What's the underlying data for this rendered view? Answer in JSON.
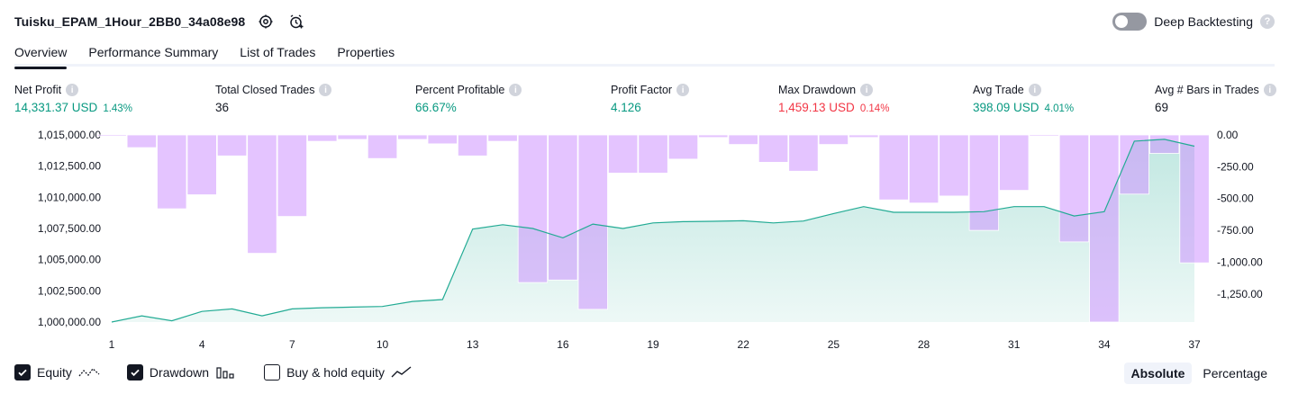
{
  "header": {
    "title": "Tuisku_EPAM_1Hour_2BB0_34a08e98",
    "deep_backtesting_label": "Deep Backtesting"
  },
  "tabs": [
    {
      "label": "Overview",
      "active": true
    },
    {
      "label": "Performance Summary",
      "active": false
    },
    {
      "label": "List of Trades",
      "active": false
    },
    {
      "label": "Properties",
      "active": false
    }
  ],
  "metrics": {
    "net_profit": {
      "label": "Net Profit",
      "value": "14,331.37 USD",
      "pct": "1.43%"
    },
    "total_closed_trades": {
      "label": "Total Closed Trades",
      "value": "36"
    },
    "percent_profitable": {
      "label": "Percent Profitable",
      "value": "66.67%"
    },
    "profit_factor": {
      "label": "Profit Factor",
      "value": "4.126"
    },
    "max_drawdown": {
      "label": "Max Drawdown",
      "value": "1,459.13 USD",
      "pct": "0.14%"
    },
    "avg_trade": {
      "label": "Avg Trade",
      "value": "398.09 USD",
      "pct": "4.01%"
    },
    "avg_bars": {
      "label": "Avg # Bars in Trades",
      "value": "69"
    }
  },
  "chart_data": {
    "type": "area",
    "x": [
      1,
      2,
      3,
      4,
      5,
      6,
      7,
      8,
      9,
      10,
      11,
      12,
      13,
      14,
      15,
      16,
      17,
      18,
      19,
      20,
      21,
      22,
      23,
      24,
      25,
      26,
      27,
      28,
      29,
      30,
      31,
      32,
      33,
      34,
      35,
      36,
      37
    ],
    "x_ticks": [
      "1",
      "4",
      "7",
      "10",
      "13",
      "16",
      "19",
      "22",
      "25",
      "28",
      "31",
      "34",
      "37"
    ],
    "y_left_ticks": [
      "1,015,000.00",
      "1,012,500.00",
      "1,010,000.00",
      "1,007,500.00",
      "1,005,000.00",
      "1,002,500.00",
      "1,000,000.00"
    ],
    "y_right_ticks": [
      "0.00",
      "-250.00",
      "-500.00",
      "-750.00",
      "-1,000.00",
      "-1,250.00"
    ],
    "ylim_left": [
      1000000,
      1015000
    ],
    "ylim_right": [
      -1470,
      0
    ],
    "series": [
      {
        "name": "Equity",
        "color": "#22ab94",
        "values": [
          1000000,
          1000500,
          1000100,
          1000850,
          1001050,
          1000500,
          1001050,
          1001150,
          1001200,
          1001250,
          1001650,
          1001800,
          1007450,
          1007800,
          1007500,
          1006750,
          1007850,
          1007500,
          1007950,
          1008050,
          1008080,
          1008120,
          1007950,
          1008100,
          1008700,
          1009250,
          1008800,
          1008800,
          1008800,
          1008850,
          1009250,
          1009250,
          1008500,
          1008850,
          1014500,
          1014650,
          1014100
        ]
      },
      {
        "name": "Drawdown",
        "color": "#e1c4ff",
        "values": [
          -10,
          -100,
          -580,
          -470,
          -165,
          -930,
          -640,
          -50,
          -35,
          -185,
          -35,
          -70,
          -165,
          -50,
          -1160,
          -1140,
          -1370,
          -300,
          -300,
          -190,
          -20,
          -75,
          -215,
          -285,
          -75,
          -20,
          -510,
          -535,
          -480,
          -750,
          -435,
          -10,
          -840,
          -1470,
          -465,
          -145,
          -1005
        ]
      }
    ]
  },
  "legend": {
    "equity_label": "Equity",
    "drawdown_label": "Drawdown",
    "buy_hold_label": "Buy & hold equity",
    "equity_checked": true,
    "drawdown_checked": true,
    "buy_hold_checked": false
  },
  "scale": {
    "absolute_label": "Absolute",
    "percentage_label": "Percentage"
  }
}
